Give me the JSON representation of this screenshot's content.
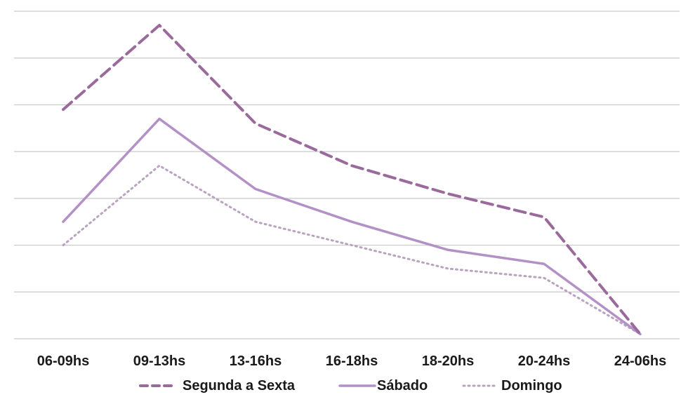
{
  "chart_data": {
    "type": "line",
    "title": "",
    "xlabel": "",
    "ylabel": "",
    "ylim": [
      0,
      7
    ],
    "grid": true,
    "legend_position": "bottom",
    "categories": [
      "06-09hs",
      "09-13hs",
      "13-16hs",
      "16-18hs",
      "18-20hs",
      "20-24hs",
      "24-06hs"
    ],
    "series": [
      {
        "name": "Segunda a Sexta",
        "values": [
          4.9,
          6.7,
          4.6,
          3.7,
          3.1,
          2.6,
          0.1
        ],
        "color": "#9b6a9c",
        "style": "dashed"
      },
      {
        "name": "Sábado",
        "values": [
          2.5,
          4.7,
          3.2,
          2.5,
          1.9,
          1.6,
          0.1
        ],
        "color": "#b391c6",
        "style": "solid"
      },
      {
        "name": "Domingo",
        "values": [
          2.0,
          3.7,
          2.5,
          2.0,
          1.5,
          1.3,
          0.1
        ],
        "color": "#b9a3bf",
        "style": "dotted"
      }
    ]
  }
}
